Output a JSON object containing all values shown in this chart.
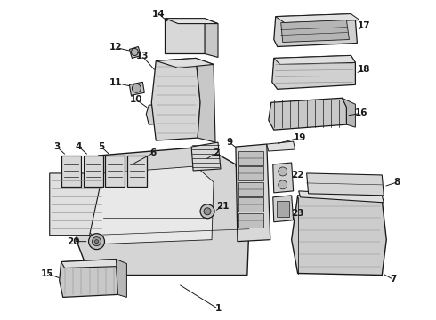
{
  "bg_color": "#ffffff",
  "dark": "#1a1a1a",
  "mid": "#888888",
  "light_gray": "#d0d0d0",
  "fig_w": 4.9,
  "fig_h": 3.6,
  "dpi": 100
}
